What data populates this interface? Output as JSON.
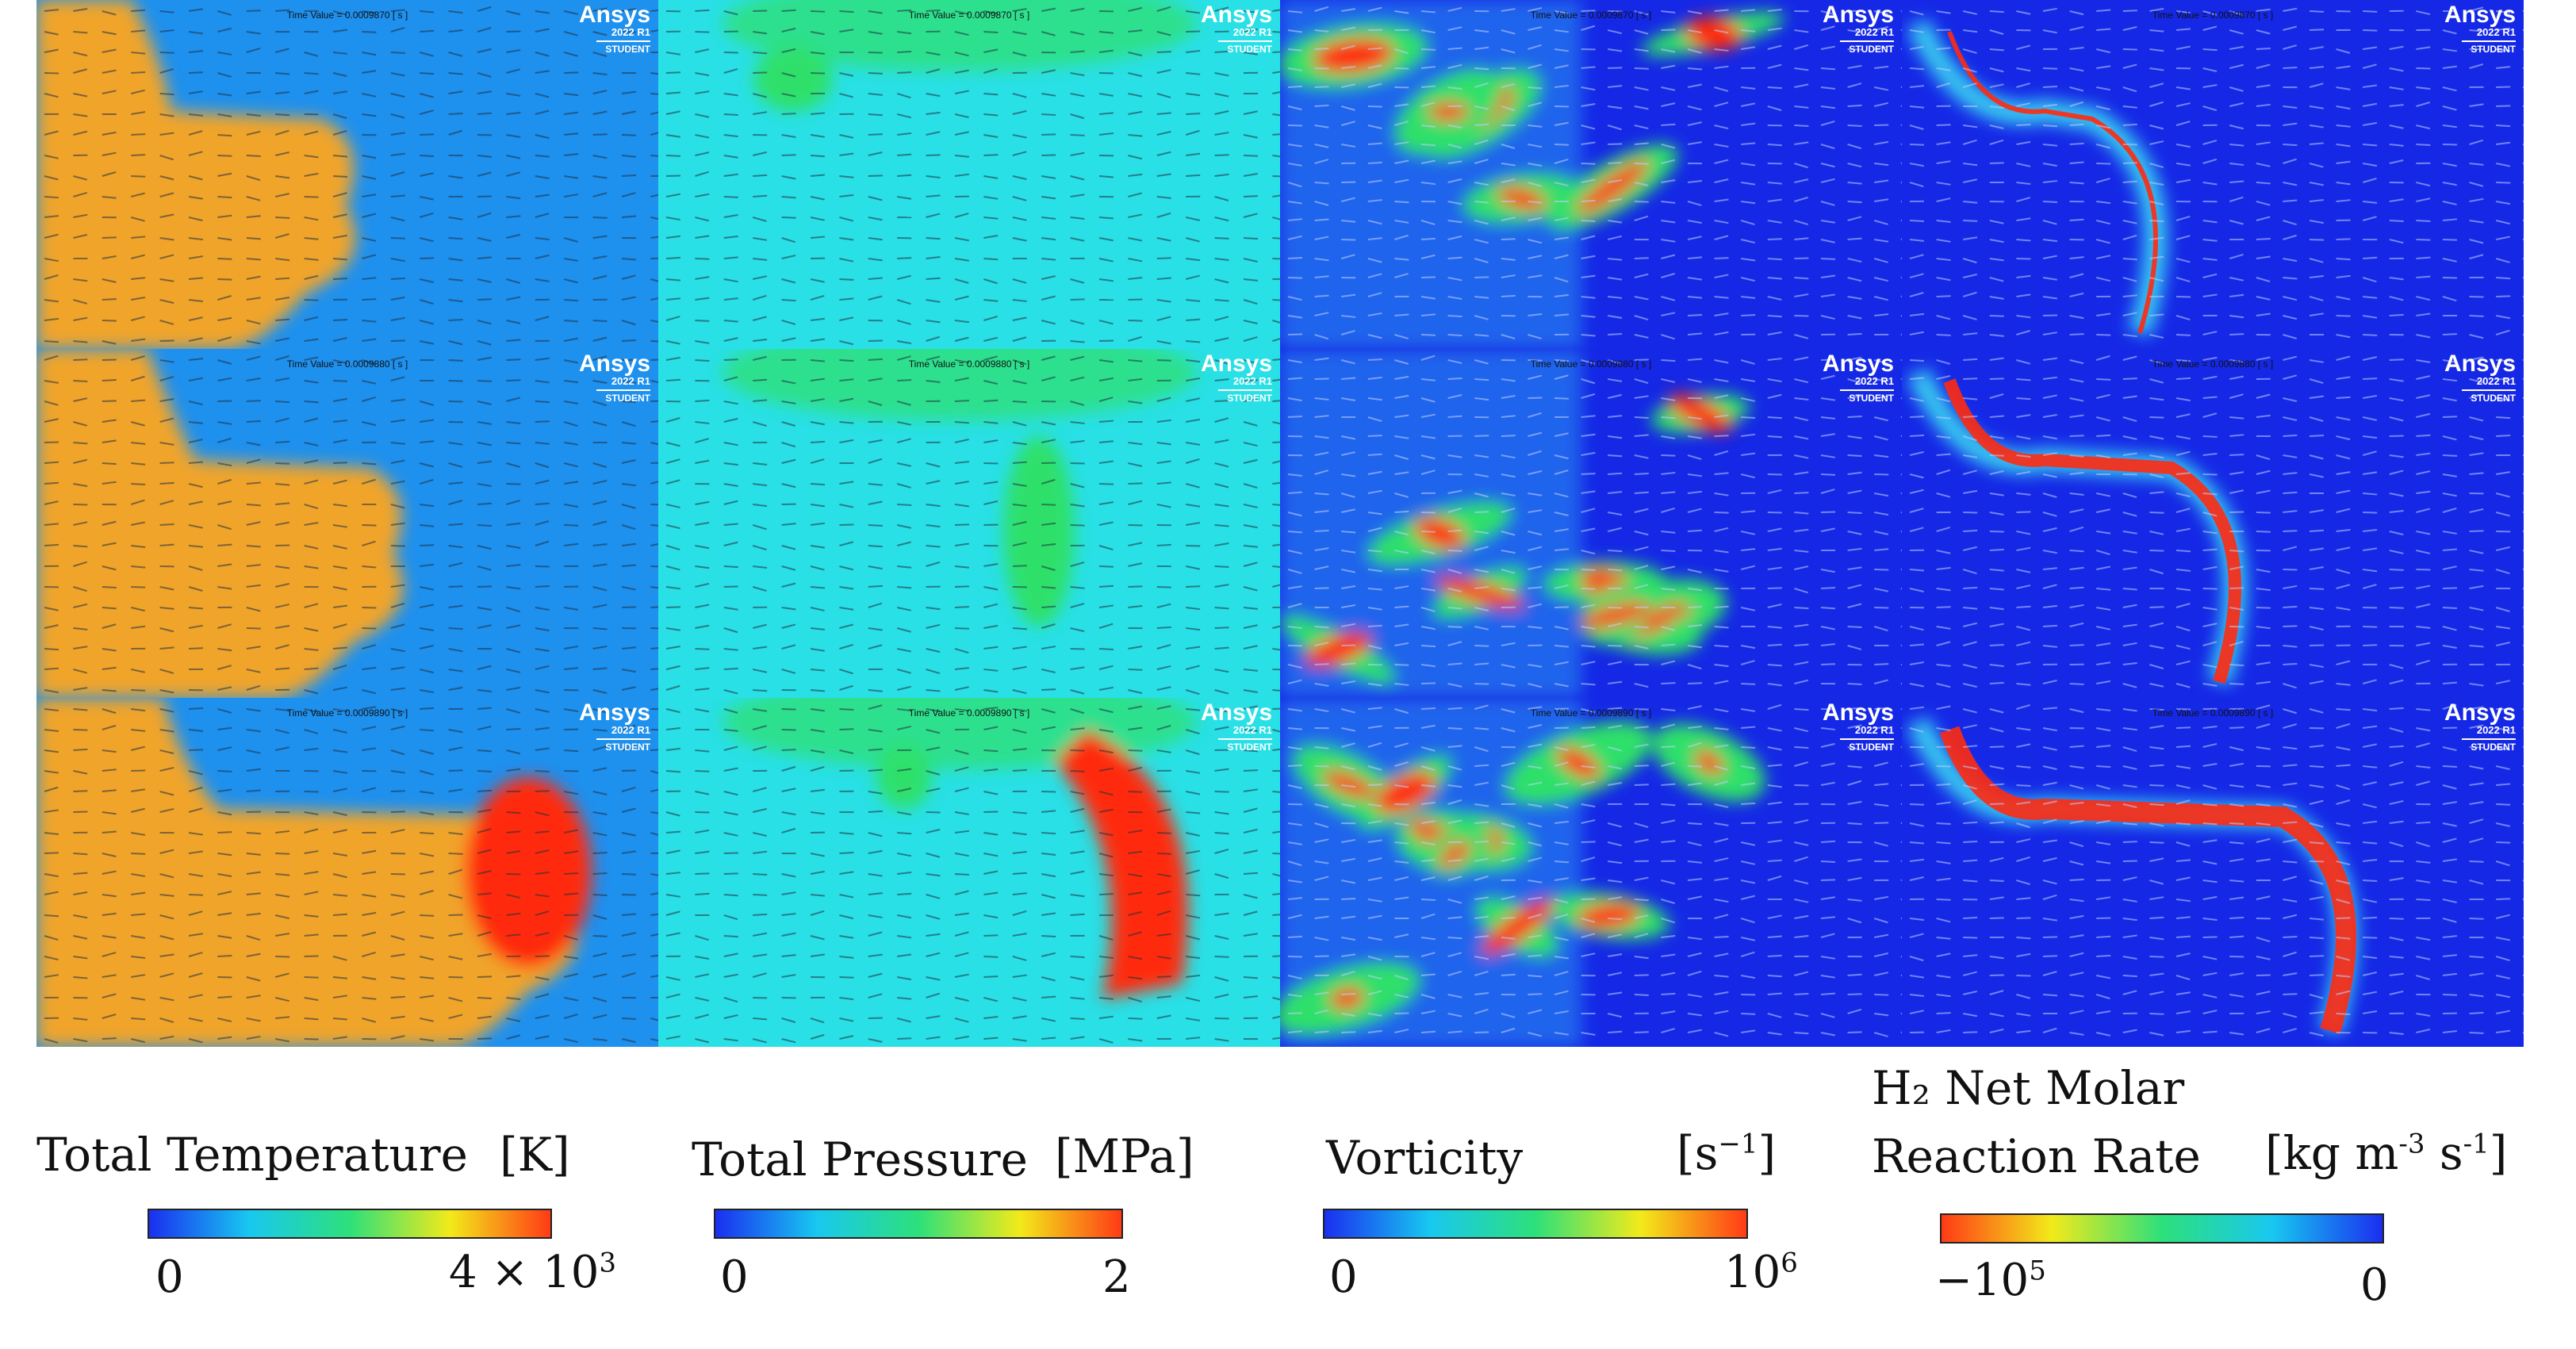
{
  "panels": {
    "time_values": [
      "Time Value = 0.0009870 [ s ]",
      "Time Value = 0.0009880 [ s ]",
      "Time Value = 0.0009890 [ s ]"
    ],
    "logo": {
      "name": "Ansys",
      "version": "2022 R1",
      "edition": "STUDENT"
    },
    "fields": [
      "total-temperature",
      "total-pressure",
      "vorticity",
      "h2-net-molar-reaction-rate"
    ]
  },
  "legends": [
    {
      "title": "Total Temperature",
      "unit": "[K]",
      "min_label": "0",
      "max_label": "4 × 10",
      "max_exp": "3",
      "gradient": [
        "#1a2ff0",
        "#18c8f0",
        "#2de07a",
        "#f2ea1a",
        "#ff3b16"
      ]
    },
    {
      "title": "Total Pressure",
      "unit": "[MPa]",
      "min_label": "0",
      "max_label": "2",
      "gradient": [
        "#1a2ff0",
        "#18c8f0",
        "#2de07a",
        "#f2ea1a",
        "#ff3b16"
      ]
    },
    {
      "title": "Vorticity",
      "unit": "[s",
      "unit_exp": "−1",
      "unit_close": "]",
      "min_label": "0",
      "max_label": "10",
      "max_exp": "6",
      "gradient": [
        "#1a2ff0",
        "#18c8f0",
        "#2de07a",
        "#f2ea1a",
        "#ff3b16"
      ]
    },
    {
      "title_line1": "H₂ Net Molar",
      "title_line2": "Reaction Rate",
      "unit": "[kg m",
      "unit_exp1": "-3",
      "unit_mid": " s",
      "unit_exp2": "-1",
      "unit_close": "]",
      "min_label": "−10",
      "min_exp": "5",
      "max_label": "0",
      "gradient": [
        "#ff3b16",
        "#f2ea1a",
        "#2de07a",
        "#18c8f0",
        "#1a2ff0"
      ]
    }
  ],
  "colors": {
    "temp_bg": "#1e90ee",
    "temp_hot": "#f0a42a",
    "press_bg": "#29e0e6",
    "vort_bg": "#1528e6",
    "react_bg": "#1528e6",
    "red": "#ff2a10",
    "green": "#2ee06a",
    "yellow": "#e8e81a"
  }
}
